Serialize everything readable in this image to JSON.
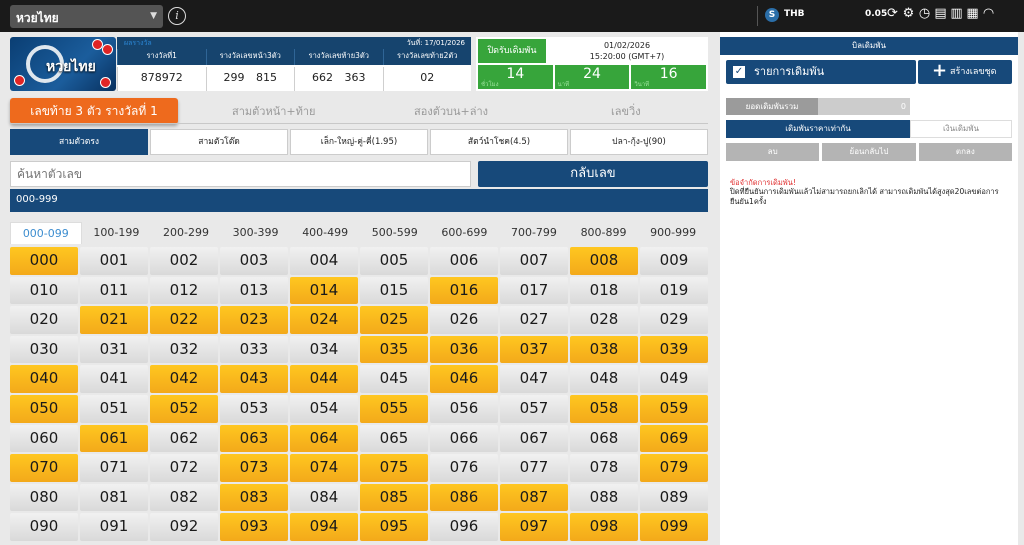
{
  "topbar": {
    "lottery_select": "หวยไทย",
    "info_icon_label": "i",
    "currency_icon": "S",
    "currency": "THB",
    "balance": "0.05",
    "icons": [
      "refresh-icon",
      "settings-icon",
      "history-icon",
      "document-icon",
      "clipboard-icon",
      "book-icon",
      "headset-icon"
    ]
  },
  "logo": {
    "text": "หวยไทย"
  },
  "results": {
    "header_label": "ผลรางวัล",
    "date": "วันที่: 17/01/2026",
    "columns": [
      "รางวัลที่1",
      "รางวัลเลขหน้า3ตัว",
      "รางวัลเลขท้าย3ตัว",
      "รางวัลเลขท้าย2ตัว"
    ],
    "values": [
      "878972",
      "299 815",
      "662 363",
      "02"
    ]
  },
  "timer": {
    "close_label": "ปิดรับเดิมพัน",
    "date": "01/02/2026",
    "time": "15:20:00 (GMT+7)",
    "countdown": [
      {
        "value": "14",
        "unit": "ชั่วโมง"
      },
      {
        "value": "24",
        "unit": "นาที"
      },
      {
        "value": "16",
        "unit": "วินาที"
      }
    ]
  },
  "main_tabs": [
    "เลขท้าย 3 ตัว รางวัลที่ 1",
    "สามตัวหน้า+ท้าย",
    "สองตัวบน+ล่าง",
    "เลขวิ่ง"
  ],
  "sub_tabs": [
    "สามตัวตรง",
    "สามตัวโต๊ด",
    "เล็ก-ใหญ่-คู่-คี่(1.95)",
    "สัตว์นำโชค(4.5)",
    "ปลา-กุ้ง-ปู(90)"
  ],
  "search": {
    "placeholder": "ค้นหาตัวเลข",
    "reverse_button": "กลับเลข"
  },
  "range_header": "000-999",
  "range_tabs": [
    "000-099",
    "100-199",
    "200-299",
    "300-399",
    "400-499",
    "500-599",
    "600-699",
    "700-799",
    "800-899",
    "900-999"
  ],
  "selected_range": "000-099",
  "numbers": [
    "000",
    "001",
    "002",
    "003",
    "004",
    "005",
    "006",
    "007",
    "008",
    "009",
    "010",
    "011",
    "012",
    "013",
    "014",
    "015",
    "016",
    "017",
    "018",
    "019",
    "020",
    "021",
    "022",
    "023",
    "024",
    "025",
    "026",
    "027",
    "028",
    "029",
    "030",
    "031",
    "032",
    "033",
    "034",
    "035",
    "036",
    "037",
    "038",
    "039",
    "040",
    "041",
    "042",
    "043",
    "044",
    "045",
    "046",
    "047",
    "048",
    "049",
    "050",
    "051",
    "052",
    "053",
    "054",
    "055",
    "056",
    "057",
    "058",
    "059",
    "060",
    "061",
    "062",
    "063",
    "064",
    "065",
    "066",
    "067",
    "068",
    "069",
    "070",
    "071",
    "072",
    "073",
    "074",
    "075",
    "076",
    "077",
    "078",
    "079",
    "080",
    "081",
    "082",
    "083",
    "084",
    "085",
    "086",
    "087",
    "088",
    "089",
    "090",
    "091",
    "092",
    "093",
    "094",
    "095",
    "096",
    "097",
    "098",
    "099"
  ],
  "highlighted": [
    "000",
    "008",
    "014",
    "016",
    "021",
    "022",
    "023",
    "024",
    "025",
    "035",
    "036",
    "037",
    "038",
    "039",
    "040",
    "042",
    "043",
    "044",
    "046",
    "050",
    "052",
    "055",
    "058",
    "059",
    "061",
    "063",
    "064",
    "069",
    "070",
    "073",
    "074",
    "075",
    "079",
    "083",
    "085",
    "086",
    "087",
    "093",
    "094",
    "095",
    "097",
    "098",
    "099"
  ],
  "colors": {
    "highlight": "#f8b41c",
    "primary": "#17497a",
    "accent_orange": "#ee6a1d",
    "green": "#37a53b"
  },
  "panel": {
    "header": "บิลเดิมพัน",
    "list_label": "รายการเดิมพัน",
    "create_label": "สร้างเลขชุด",
    "total_label": "ยอดเดิมพันรวม",
    "total_value": "0",
    "same_price_label": "เดิมพันราคาเท่ากัน",
    "money_label": "เงินเดิมพัน",
    "actions": [
      "ลบ",
      "ย้อนกลับไป",
      "ตกลง"
    ],
    "warning_title": "ข้อจำกัดการเดิมพัน!",
    "warning_text": "ปิดที่ยืนยันการเดิมพันแล้วไม่สามารถยกเลิกได้ สามารถเดิมพันได้สูงสุด20เลขต่อการยืนยัน1ครั้ง"
  }
}
